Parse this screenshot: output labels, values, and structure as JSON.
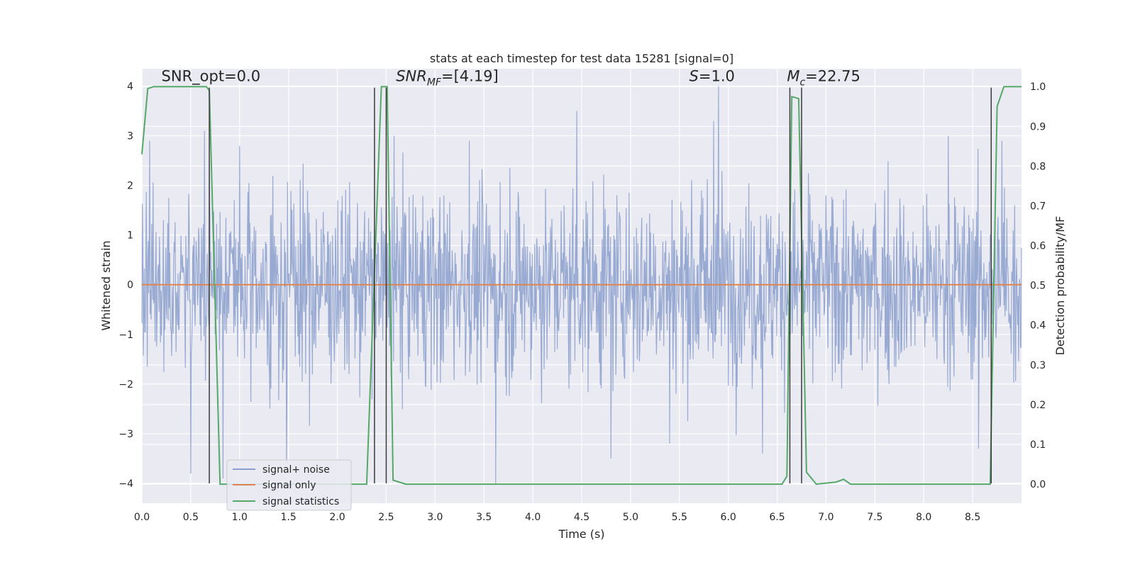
{
  "chart_data": {
    "type": "line",
    "title": "stats at each timestep for test data 15281 [signal=0]",
    "xlabel": "Time (s)",
    "ylabel": "Whitened strain",
    "y2label": "Detection probability/MF",
    "xlim": [
      0.0,
      9.0
    ],
    "ylim": [
      -4.4,
      4.35
    ],
    "y2lim": [
      -0.048,
      1.045
    ],
    "xticks": [
      "0.0",
      "0.5",
      "1.0",
      "1.5",
      "2.0",
      "2.5",
      "3.0",
      "3.5",
      "4.0",
      "4.5",
      "5.0",
      "5.5",
      "6.0",
      "6.5",
      "7.0",
      "7.5",
      "8.0",
      "8.5"
    ],
    "yticks": [
      "4",
      "3",
      "2",
      "1",
      "0",
      "−1",
      "−2",
      "−3",
      "−4"
    ],
    "y2ticks": [
      "1.0",
      "0.9",
      "0.8",
      "0.7",
      "0.6",
      "0.5",
      "0.4",
      "0.3",
      "0.2",
      "0.1",
      "0.0"
    ],
    "grid": true,
    "legend_position": "lower-left",
    "colors": {
      "noise": "#8a9fcd",
      "signal": "#dd8452",
      "stats": "#55a868",
      "marker": "#3a3a3a",
      "background": "#eaeaf2",
      "grid": "#ffffff"
    },
    "annotations": [
      {
        "text": "SNR_opt=0.0",
        "x": 0.2,
        "y": 4.1
      },
      {
        "text_main": "SNR",
        "text_sub": "MF",
        "text_rest": "=[4.19]",
        "x": 2.6,
        "y": 4.1
      },
      {
        "text_main": "S",
        "text_rest": "=1.0",
        "x": 5.6,
        "y": 4.1
      },
      {
        "text_main": "M",
        "text_sub": "c",
        "text_rest": "=22.75",
        "x": 6.6,
        "y": 4.1
      }
    ],
    "series": [
      {
        "name": "signal+ noise",
        "kind": "noise",
        "amplitude_bound": 4.1,
        "notable_peaks": [
          {
            "x": 0.08,
            "y": 2.9
          },
          {
            "x": 0.64,
            "y": 3.1
          },
          {
            "x": 0.69,
            "y": 2.5
          },
          {
            "x": 1.0,
            "y": 2.8
          },
          {
            "x": 2.58,
            "y": 3.0
          },
          {
            "x": 3.35,
            "y": 2.9
          },
          {
            "x": 4.45,
            "y": 3.5
          },
          {
            "x": 5.85,
            "y": 3.3
          },
          {
            "x": 5.9,
            "y": 4.0
          },
          {
            "x": 8.25,
            "y": 3.0
          },
          {
            "x": 8.8,
            "y": 2.9
          },
          {
            "x": 0.5,
            "y": -3.8
          },
          {
            "x": 0.83,
            "y": -3.9
          },
          {
            "x": 1.48,
            "y": -3.6
          },
          {
            "x": 3.62,
            "y": -4.0
          },
          {
            "x": 4.8,
            "y": -3.5
          },
          {
            "x": 5.4,
            "y": -3.2
          },
          {
            "x": 6.35,
            "y": -3.4
          },
          {
            "x": 8.56,
            "y": -3.3
          }
        ]
      },
      {
        "name": "signal only",
        "kind": "line",
        "x": [
          0.0,
          9.0
        ],
        "y": [
          0.0,
          0.0
        ]
      },
      {
        "name": "signal statistics",
        "kind": "line",
        "axis": "right",
        "x": [
          0.0,
          0.06,
          0.12,
          0.3,
          0.5,
          0.66,
          0.69,
          0.8,
          1.0,
          2.0,
          2.3,
          2.45,
          2.51,
          2.57,
          2.7,
          4.0,
          6.0,
          6.55,
          6.6,
          6.65,
          6.72,
          6.8,
          6.9,
          7.1,
          7.18,
          7.25,
          7.5,
          8.0,
          8.6,
          8.68,
          8.75,
          8.82,
          9.0
        ],
        "y": [
          0.83,
          0.995,
          1.0,
          1.0,
          1.0,
          1.0,
          0.99,
          0.0,
          0.0,
          0.0,
          0.0,
          1.0,
          1.0,
          0.01,
          0.0,
          0.0,
          0.0,
          0.0,
          0.02,
          0.975,
          0.97,
          0.03,
          0.0,
          0.005,
          0.012,
          0.0,
          0.0,
          0.0,
          0.0,
          0.0,
          0.95,
          1.0,
          1.0
        ]
      }
    ],
    "vlines": [
      0.69,
      2.38,
      2.5,
      6.63,
      6.75,
      8.69
    ],
    "vline_y_range": [
      -4.0,
      3.97
    ]
  }
}
